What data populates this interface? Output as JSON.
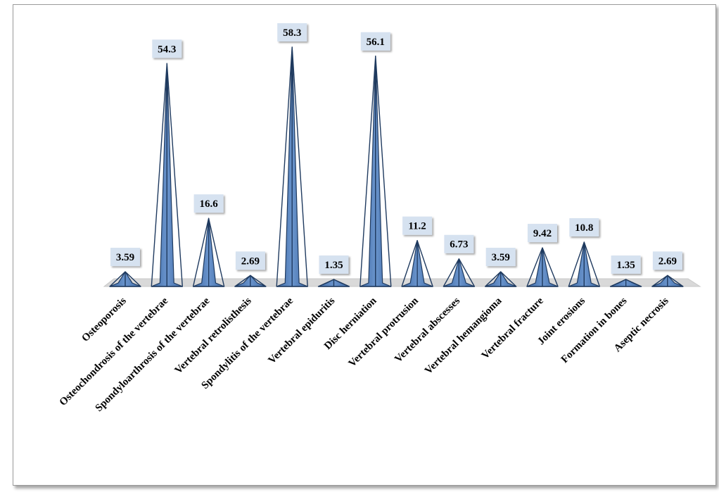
{
  "chart_data": {
    "type": "bar",
    "shape": "pyramid",
    "title": "",
    "xlabel": "",
    "ylabel": "",
    "categories": [
      "Osteoporosis",
      "Osteochondrosis of the vertebrae",
      "Spondyloarthrosis of the vertebrae",
      "Vertebral retrolisthesis",
      "Spondylitis of the vertebrae",
      "Vertebral epiduritis",
      "Disc herniation",
      "Vertebral protrusion",
      "Vertebral abscesses",
      "Vertebral hemangioma",
      "Vertebral fracture",
      "Joint erosions",
      "Formation in bones",
      "Aseptic necrosis"
    ],
    "values": [
      3.59,
      54.3,
      16.6,
      2.69,
      58.3,
      1.35,
      56.1,
      11.2,
      6.73,
      3.59,
      9.42,
      10.8,
      1.35,
      2.69
    ],
    "value_labels": [
      "3.59",
      "54.3",
      "16.6",
      "2.69",
      "58.3",
      "1.35",
      "56.1",
      "11.2",
      "6.73",
      "3.59",
      "9.42",
      "10.8",
      "1.35",
      "2.69"
    ],
    "ylim": [
      0,
      60
    ],
    "grid": false,
    "legend": "none",
    "colors": {
      "face_light": "#6a94cc",
      "face_dark": "#3e6aa6",
      "edge": "#1f3a5f",
      "floor": "#d9d9d9",
      "label_box": "#d6e2f0"
    }
  }
}
